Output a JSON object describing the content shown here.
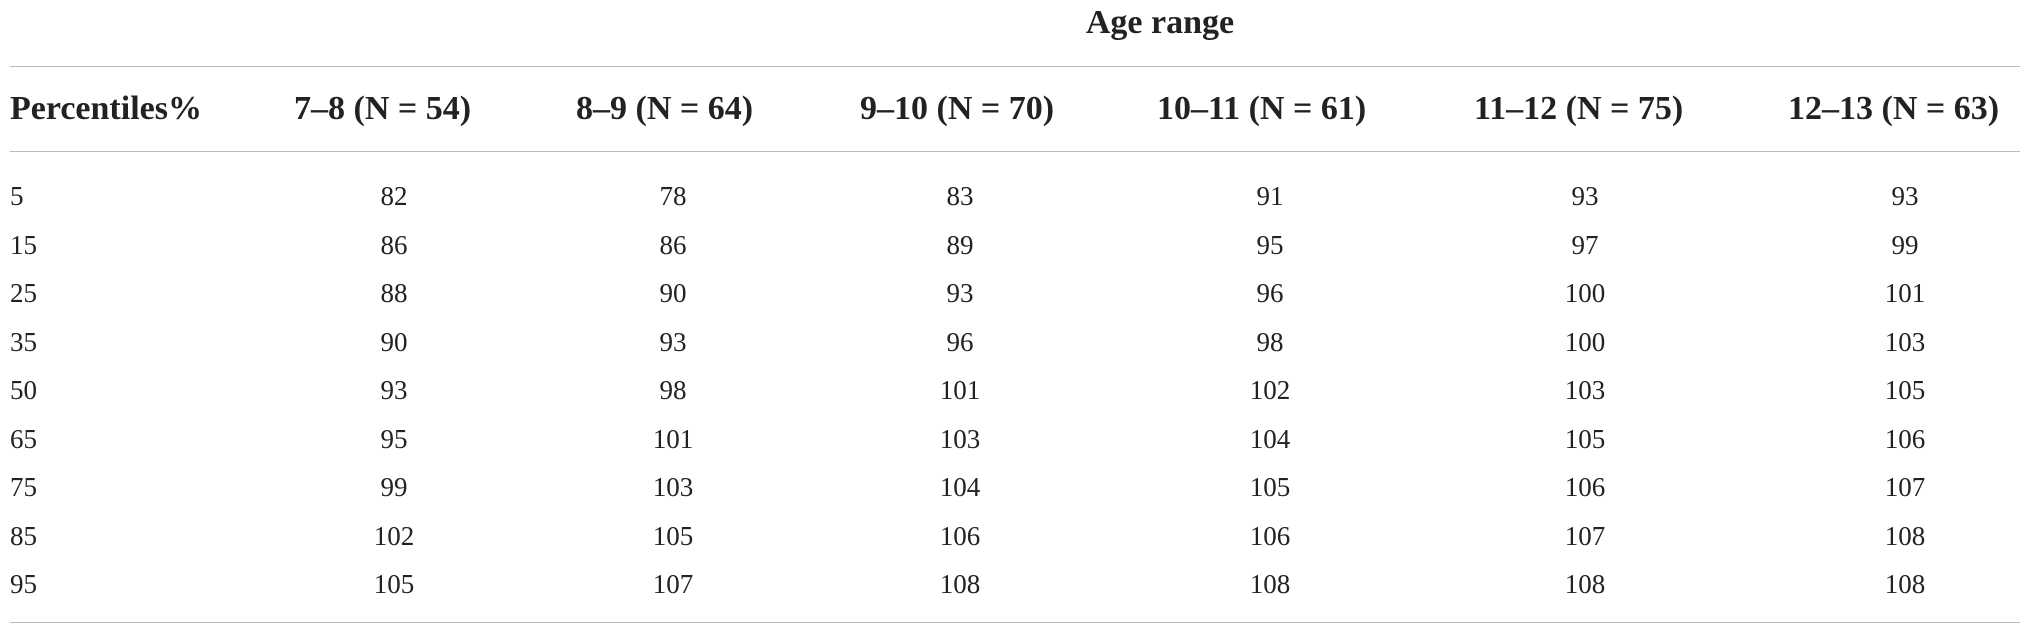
{
  "table": {
    "spanner": "Age range",
    "first_column_header": "Percentiles%",
    "column_headers": [
      "7–8 (N = 54)",
      "8–9 (N = 64)",
      "9–10 (N = 70)",
      "10–11 (N = 61)",
      "11–12 (N = 75)",
      "12–13 (N = 63)"
    ],
    "rows": [
      {
        "percentile": "5",
        "values": [
          "82",
          "78",
          "83",
          "91",
          "93",
          "93"
        ]
      },
      {
        "percentile": "15",
        "values": [
          "86",
          "86",
          "89",
          "95",
          "97",
          "99"
        ]
      },
      {
        "percentile": "25",
        "values": [
          "88",
          "90",
          "93",
          "96",
          "100",
          "101"
        ]
      },
      {
        "percentile": "35",
        "values": [
          "90",
          "93",
          "96",
          "98",
          "100",
          "103"
        ]
      },
      {
        "percentile": "50",
        "values": [
          "93",
          "98",
          "101",
          "102",
          "103",
          "105"
        ]
      },
      {
        "percentile": "65",
        "values": [
          "95",
          "101",
          "103",
          "104",
          "105",
          "106"
        ]
      },
      {
        "percentile": "75",
        "values": [
          "99",
          "103",
          "104",
          "105",
          "106",
          "107"
        ]
      },
      {
        "percentile": "85",
        "values": [
          "102",
          "105",
          "106",
          "106",
          "107",
          "108"
        ]
      },
      {
        "percentile": "95",
        "values": [
          "105",
          "107",
          "108",
          "108",
          "108",
          "108"
        ]
      }
    ]
  }
}
